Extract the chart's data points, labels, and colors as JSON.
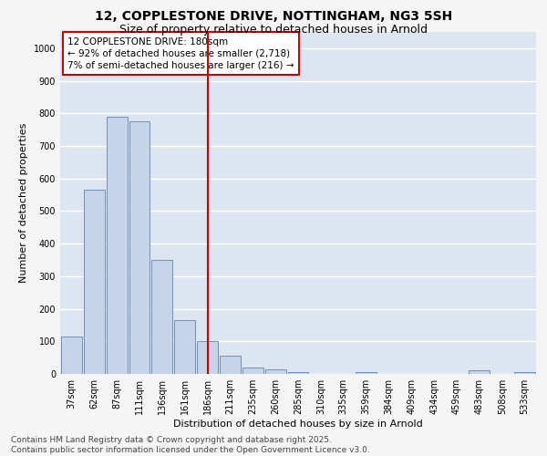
{
  "title_line1": "12, COPPLESTONE DRIVE, NOTTINGHAM, NG3 5SH",
  "title_line2": "Size of property relative to detached houses in Arnold",
  "xlabel": "Distribution of detached houses by size in Arnold",
  "ylabel": "Number of detached properties",
  "background_color": "#dde5f0",
  "fig_background_color": "#f5f5f5",
  "bar_color": "#c5d4e8",
  "bar_edge_color": "#7090b8",
  "categories": [
    "37sqm",
    "62sqm",
    "87sqm",
    "111sqm",
    "136sqm",
    "161sqm",
    "186sqm",
    "211sqm",
    "235sqm",
    "260sqm",
    "285sqm",
    "310sqm",
    "335sqm",
    "359sqm",
    "384sqm",
    "409sqm",
    "434sqm",
    "459sqm",
    "483sqm",
    "508sqm",
    "533sqm"
  ],
  "values": [
    115,
    565,
    790,
    775,
    350,
    165,
    100,
    55,
    20,
    13,
    7,
    0,
    0,
    5,
    0,
    0,
    0,
    0,
    10,
    0,
    5
  ],
  "vline_position": 6,
  "vline_color": "#cc0000",
  "annotation_text": "12 COPPLESTONE DRIVE: 180sqm\n← 92% of detached houses are smaller (2,718)\n7% of semi-detached houses are larger (216) →",
  "annotation_box_color": "#ffffff",
  "annotation_box_edge": "#cc0000",
  "ylim": [
    0,
    1050
  ],
  "yticks": [
    0,
    100,
    200,
    300,
    400,
    500,
    600,
    700,
    800,
    900,
    1000
  ],
  "footer_line1": "Contains HM Land Registry data © Crown copyright and database right 2025.",
  "footer_line2": "Contains public sector information licensed under the Open Government Licence v3.0.",
  "grid_color": "#ffffff",
  "title_fontsize": 10,
  "subtitle_fontsize": 9,
  "axis_label_fontsize": 8,
  "tick_fontsize": 7,
  "annotation_fontsize": 7.5,
  "footer_fontsize": 6.5
}
